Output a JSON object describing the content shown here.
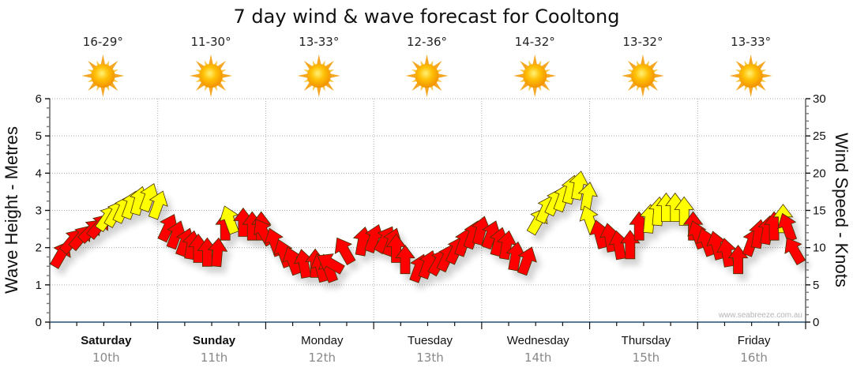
{
  "chart_data": {
    "type": "scatter",
    "title": "7 day wind & wave forecast for Cooltong",
    "left_axis": {
      "label": "Wave Height - Metres",
      "range": [
        0,
        6
      ],
      "ticks": [
        "0",
        "1",
        "2",
        "3",
        "4",
        "5",
        "6"
      ]
    },
    "right_axis": {
      "label": "Wind Speed - Knots",
      "range": [
        0,
        30
      ],
      "ticks": [
        "0",
        "5",
        "10",
        "15",
        "20",
        "25",
        "30"
      ]
    },
    "grid": true,
    "days": [
      {
        "name": "Saturday",
        "date": "10th",
        "temp": "16-29°",
        "weather": "sunny",
        "bold": true
      },
      {
        "name": "Sunday",
        "date": "11th",
        "temp": "11-30°",
        "weather": "sunny",
        "bold": true
      },
      {
        "name": "Monday",
        "date": "12th",
        "temp": "13-33°",
        "weather": "sunny",
        "bold": false
      },
      {
        "name": "Tuesday",
        "date": "13th",
        "temp": "12-36°",
        "weather": "sunny",
        "bold": false
      },
      {
        "name": "Wednesday",
        "date": "14th",
        "temp": "14-32°",
        "weather": "sunny",
        "bold": false
      },
      {
        "name": "Thursday",
        "date": "15th",
        "temp": "13-32°",
        "weather": "sunny",
        "bold": false
      },
      {
        "name": "Friday",
        "date": "16th",
        "temp": "13-33°",
        "weather": "sunny",
        "bold": false
      }
    ],
    "wind_series": {
      "name": "Wind Speed (knots) with direction",
      "colors": {
        "light": "#ffff00",
        "strong": "#ff0000"
      },
      "points_per_day": 12,
      "speeds": [
        7.5,
        9.5,
        10,
        11,
        11.5,
        12.5,
        13,
        13.5,
        14,
        14.5,
        15,
        14,
        11,
        10,
        9,
        8.5,
        8,
        7.5,
        7.5,
        11,
        12,
        11.5,
        11,
        11,
        10.5,
        9,
        7.5,
        6.5,
        6,
        6,
        5.5,
        5.5,
        7,
        8,
        9,
        9.5,
        9.5,
        9,
        8,
        6.5,
        5.5,
        6,
        6.5,
        7,
        8,
        9,
        10,
        10.5,
        10,
        9,
        8.5,
        7,
        6.5,
        12,
        13.5,
        14.5,
        15,
        16,
        16.5,
        15,
        12,
        10,
        9.5,
        8.5,
        8.5,
        11,
        12,
        13,
        13.5,
        13.5,
        13,
        11,
        10,
        9,
        8.5,
        7.5,
        6.5,
        9,
        10,
        10.5,
        11,
        12,
        11,
        8
      ],
      "directions_deg": [
        30,
        40,
        40,
        45,
        40,
        35,
        30,
        25,
        20,
        15,
        20,
        20,
        25,
        20,
        20,
        10,
        0,
        0,
        5,
        0,
        -20,
        0,
        0,
        0,
        -30,
        -20,
        -20,
        -20,
        -10,
        0,
        -15,
        -20,
        -60,
        -30,
        10,
        20,
        30,
        20,
        0,
        0,
        20,
        20,
        30,
        25,
        25,
        20,
        20,
        15,
        20,
        15,
        10,
        10,
        20,
        30,
        25,
        25,
        20,
        15,
        10,
        10,
        -20,
        -15,
        -10,
        -10,
        0,
        0,
        5,
        5,
        0,
        0,
        0,
        0,
        -20,
        -20,
        -15,
        -10,
        0,
        20,
        10,
        10,
        0,
        0,
        -20,
        -30
      ]
    },
    "watermark": "www.seabreeze.com.au"
  }
}
